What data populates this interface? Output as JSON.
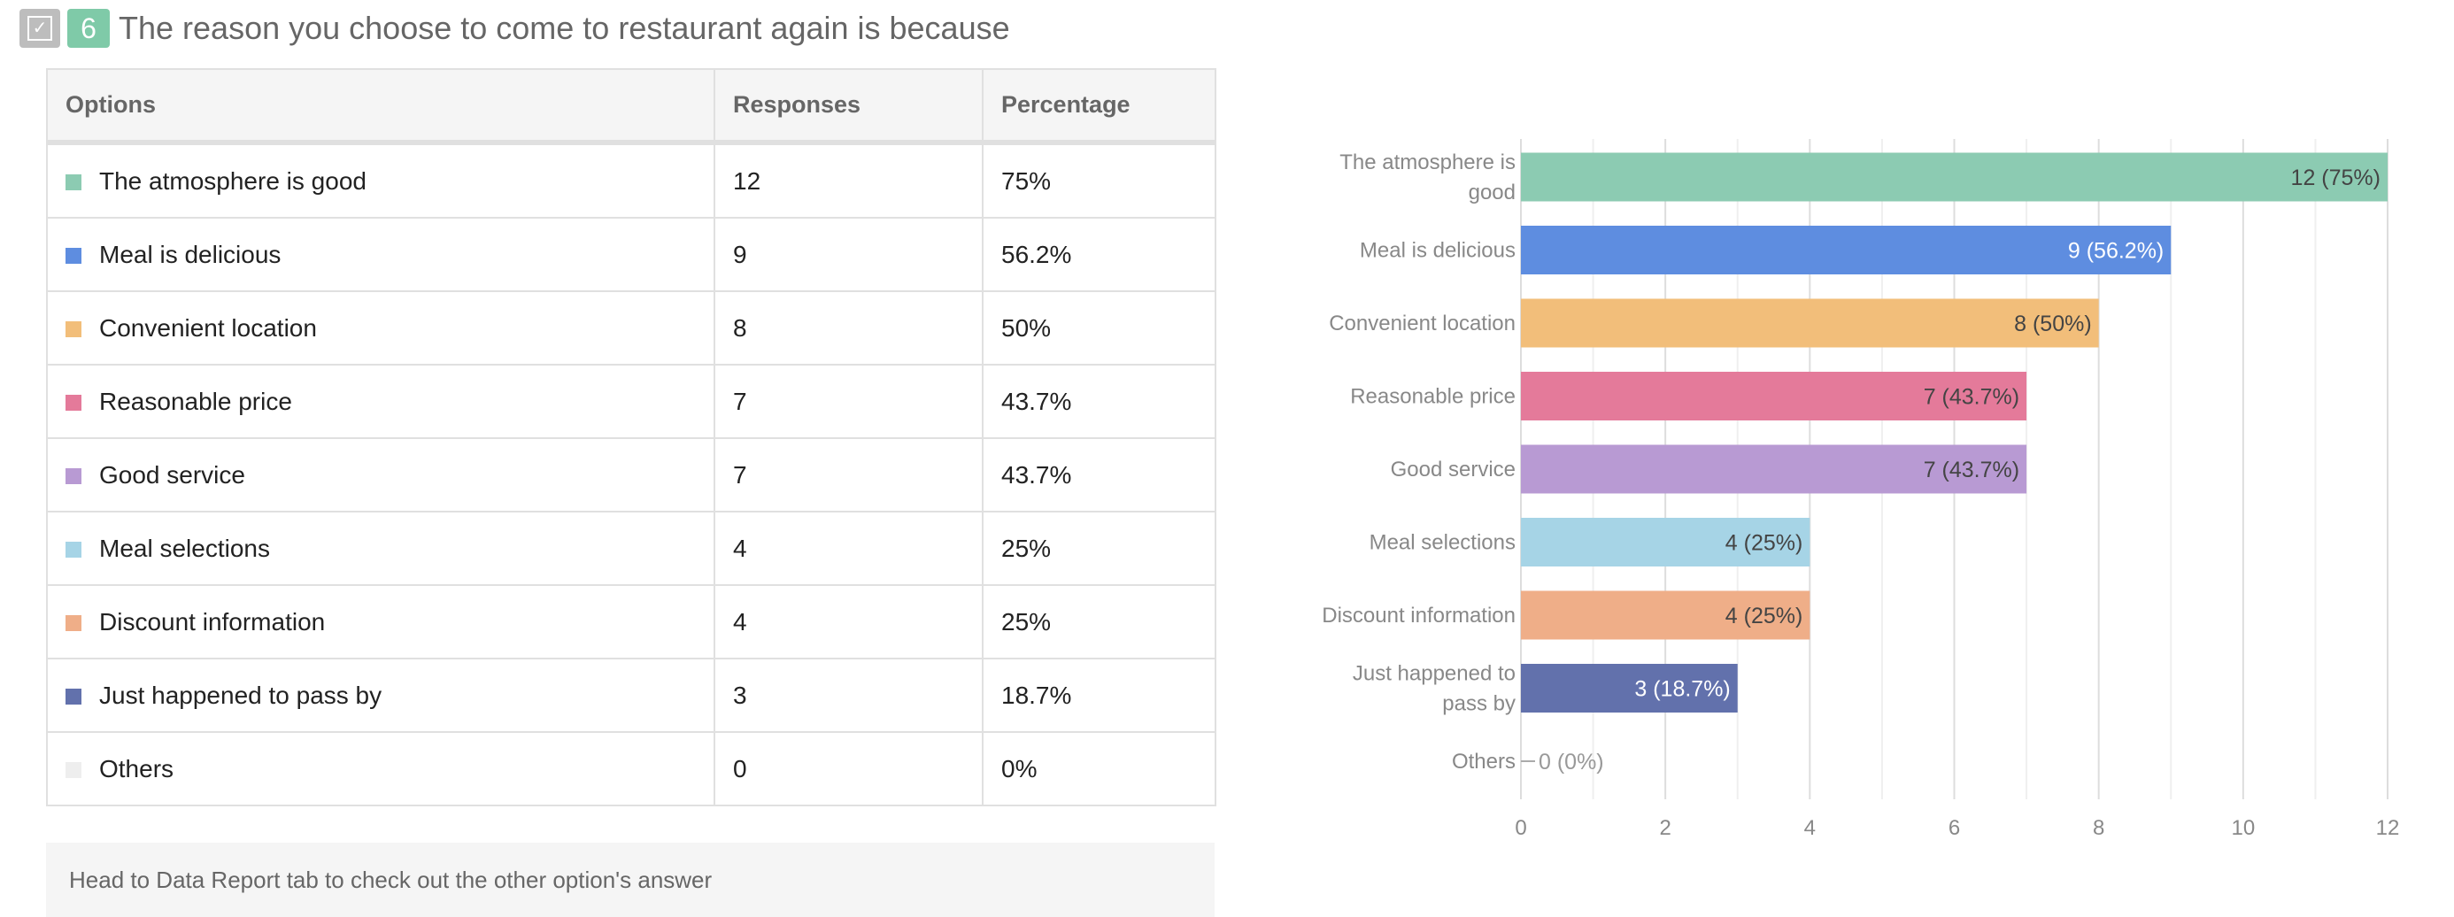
{
  "question": {
    "number": "6",
    "title": "The reason you choose to come to restaurant again is because",
    "icon": "checkbox-icon"
  },
  "table": {
    "headers": [
      "Options",
      "Responses",
      "Percentage"
    ],
    "rows": [
      {
        "option": "The atmosphere is good",
        "responses": "12",
        "percentage": "75%",
        "color": "#8ccbb2"
      },
      {
        "option": "Meal is delicious",
        "responses": "9",
        "percentage": "56.2%",
        "color": "#5e8de0"
      },
      {
        "option": "Convenient location",
        "responses": "8",
        "percentage": "50%",
        "color": "#f2be7a"
      },
      {
        "option": "Reasonable price",
        "responses": "7",
        "percentage": "43.7%",
        "color": "#e47a9a"
      },
      {
        "option": "Good service",
        "responses": "7",
        "percentage": "43.7%",
        "color": "#b89ad3"
      },
      {
        "option": "Meal selections",
        "responses": "4",
        "percentage": "25%",
        "color": "#a6d4e6"
      },
      {
        "option": "Discount information",
        "responses": "4",
        "percentage": "25%",
        "color": "#efae88"
      },
      {
        "option": "Just happened to pass by",
        "responses": "3",
        "percentage": "18.7%",
        "color": "#6271ac"
      },
      {
        "option": "Others",
        "responses": "0",
        "percentage": "0%",
        "color": "#eeeeee"
      }
    ]
  },
  "note": "Head to Data Report tab to check out the other option's answer",
  "chart_data": {
    "type": "bar",
    "orientation": "horizontal",
    "categories": [
      "The atmosphere is good",
      "Meal is delicious",
      "Convenient location",
      "Reasonable price",
      "Good service",
      "Meal selections",
      "Discount information",
      "Just happened to pass by",
      "Others"
    ],
    "values": [
      12,
      9,
      8,
      7,
      7,
      4,
      4,
      3,
      0
    ],
    "data_labels": [
      "12 (75%)",
      "9 (56.2%)",
      "8 (50%)",
      "7 (43.7%)",
      "7 (43.7%)",
      "4 (25%)",
      "4 (25%)",
      "3 (18.7%)",
      "0 (0%)"
    ],
    "colors": [
      "#8ccbb2",
      "#5e8de0",
      "#f2be7a",
      "#e47a9a",
      "#b89ad3",
      "#a6d4e6",
      "#efae88",
      "#6271ac",
      "#eeeeee"
    ],
    "label_colors": [
      "#444444",
      "#ffffff",
      "#444444",
      "#444444",
      "#444444",
      "#444444",
      "#444444",
      "#ffffff",
      "#999999"
    ],
    "xlim": [
      0,
      12
    ],
    "xticks": [
      "0",
      "2",
      "4",
      "6",
      "8",
      "10",
      "12"
    ],
    "grid": true
  }
}
